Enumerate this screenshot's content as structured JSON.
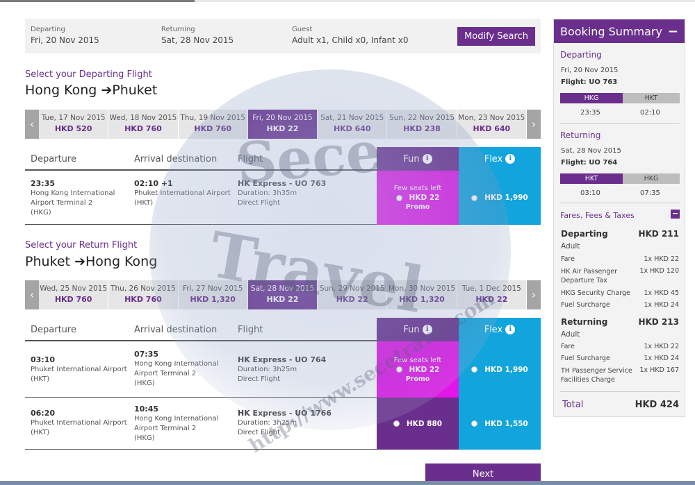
{
  "search": {
    "departing_label": "Departing",
    "departing_value": "Fri, 20 Nov 2015",
    "returning_label": "Returning",
    "returning_value": "Sat, 28 Nov 2015",
    "guest_label": "Guest",
    "guest_value": "Adult x1, Child x0, Infant x0",
    "modify_label": "Modify Search"
  },
  "outbound": {
    "title": "Select your Departing Flight",
    "route_from": "Hong Kong",
    "route_to": "Phuket",
    "dates": [
      {
        "date": "Tue, 17 Nov 2015",
        "price": "HKD 520"
      },
      {
        "date": "Wed, 18 Nov 2015",
        "price": "HKD 760"
      },
      {
        "date": "Thu, 19 Nov 2015",
        "price": "HKD 760"
      },
      {
        "date": "Fri, 20 Nov 2015",
        "price": "HKD 22",
        "active": true
      },
      {
        "date": "Sat, 21 Nov 2015",
        "price": "HKD 640"
      },
      {
        "date": "Sun, 22 Nov 2015",
        "price": "HKD 238"
      },
      {
        "date": "Mon, 23 Nov 2015",
        "price": "HKD 640"
      }
    ],
    "flights": [
      {
        "dep_time": "23:35",
        "dep_airport": [
          "Hong Kong International",
          "Airport Terminal 2",
          "(HKG)"
        ],
        "arr_time": "02:10 +1",
        "arr_airport": [
          "Phuket International Airport",
          "(HKT)"
        ],
        "airline": "HK Express - UO 763",
        "duration": "Duration: 3h35m",
        "type": "Direct Flight",
        "fun_note": "Few seats left",
        "fun_price": "HKD 22",
        "fun_tag": "Promo",
        "flex_price": "HKD 1,990"
      }
    ]
  },
  "inbound": {
    "title": "Select your Return Flight",
    "route_from": "Phuket",
    "route_to": "Hong Kong",
    "dates": [
      {
        "date": "Wed, 25 Nov 2015",
        "price": "HKD 760"
      },
      {
        "date": "Thu, 26 Nov 2015",
        "price": "HKD 760"
      },
      {
        "date": "Fri, 27 Nov 2015",
        "price": "HKD 1,320"
      },
      {
        "date": "Sat, 28 Nov 2015",
        "price": "HKD 22",
        "active": true
      },
      {
        "date": "Sun, 29 Nov 2015",
        "price": "HKD 22"
      },
      {
        "date": "Mon, 30 Nov 2015",
        "price": "HKD 1,320"
      },
      {
        "date": "Tue, 1 Dec 2015",
        "price": "HKD 22"
      }
    ],
    "flights": [
      {
        "dep_time": "03:10",
        "dep_airport": [
          "Phuket International Airport",
          "(HKT)"
        ],
        "arr_time": "07:35",
        "arr_airport": [
          "Hong Kong International",
          "Airport Terminal 2",
          "(HKG)"
        ],
        "airline": "HK Express - UO 764",
        "duration": "Duration: 3h25m",
        "type": "Direct Flight",
        "fun_note": "Few seats left",
        "fun_price": "HKD 22",
        "fun_tag": "Promo",
        "flex_price": "HKD 1,990"
      },
      {
        "dep_time": "06:20",
        "dep_airport": [
          "Phuket International Airport",
          "(HKT)"
        ],
        "arr_time": "10:45",
        "arr_airport": [
          "Hong Kong International",
          "Airport Terminal 2",
          "(HKG)"
        ],
        "airline": "HK Express - UO 1766",
        "duration": "Duration: 3h25m",
        "type": "Direct Flight",
        "fun_price": "HKD 880",
        "flex_price": "HKD 1,550"
      }
    ]
  },
  "table_headers": {
    "departure": "Departure",
    "arrival": "Arrival destination",
    "flight": "Flight",
    "fun": "Fun",
    "flex": "Flex"
  },
  "next_label": "Next",
  "summary": {
    "title": "Booking Summary",
    "toggle": "−",
    "departing": {
      "label": "Departing",
      "date": "Fri, 20 Nov 2015",
      "flight": "Flight: UO 763",
      "from": "HKG",
      "to": "HKT",
      "dep_time": "23:35",
      "arr_time": "02:10"
    },
    "returning": {
      "label": "Returning",
      "date": "Sat, 28 Nov 2015",
      "flight": "Flight: UO 764",
      "from": "HKT",
      "to": "HKG",
      "dep_time": "03:10",
      "arr_time": "07:35"
    },
    "fares_title": "Fares, Fees & Taxes",
    "fares_toggle": "−",
    "dep_group": {
      "label": "Departing",
      "total": "HKD 211",
      "pax": "Adult"
    },
    "dep_lines": [
      {
        "name": "Fare",
        "amount": "1x HKD 22"
      },
      {
        "name": "HK Air Passenger Departure Tax",
        "amount": "1x HKD 120"
      },
      {
        "name": "HKG Security Charge",
        "amount": "1x HKD 45"
      },
      {
        "name": "Fuel Surcharge",
        "amount": "1x HKD 24"
      }
    ],
    "ret_group": {
      "label": "Returning",
      "total": "HKD 213",
      "pax": "Adult"
    },
    "ret_lines": [
      {
        "name": "Fare",
        "amount": "1x HKD 22"
      },
      {
        "name": "Fuel Surcharge",
        "amount": "1x HKD 24"
      },
      {
        "name": "TH Passenger Service Facilities Charge",
        "amount": "1x HKD 167"
      }
    ],
    "total_label": "Total",
    "total_value": "HKD 424"
  },
  "watermark": {
    "line1": "Sece",
    "line2": "Travel",
    "line3": "http://www.secetravel.com"
  },
  "colors": {
    "brand_purple": "#6a2e8c",
    "promo_magenta": "#e216e6",
    "flex_blue": "#12a4dc"
  }
}
